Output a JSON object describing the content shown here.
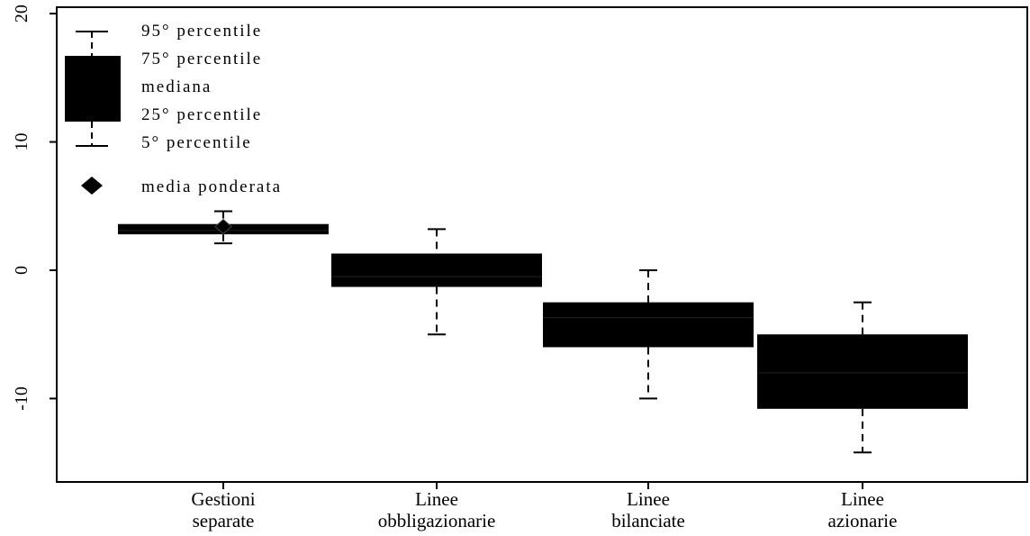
{
  "chart_data": {
    "type": "boxplot",
    "title": "",
    "xlabel": "",
    "ylabel": "",
    "ylim": [
      -16.5,
      20.5
    ],
    "yticks": [
      -10,
      0,
      10,
      20
    ],
    "yticks_labels": [
      "-10",
      "0",
      "10",
      "20"
    ],
    "grid": false,
    "legend_position": "top-left",
    "categories": [
      {
        "line1": "Gestioni",
        "line2": "separate"
      },
      {
        "line1": "Linee",
        "line2": "obbligazionarie"
      },
      {
        "line1": "Linee",
        "line2": "bilanciate"
      },
      {
        "line1": "Linee",
        "line2": "azionarie"
      }
    ],
    "boxes": [
      {
        "p5": 2.1,
        "p25": 2.8,
        "median": 3.1,
        "p75": 3.6,
        "p95": 4.6,
        "weighted_mean": 3.4
      },
      {
        "p5": -5.0,
        "p25": -1.3,
        "median": -0.5,
        "p75": 1.3,
        "p95": 3.2,
        "weighted_mean": null
      },
      {
        "p5": -10.0,
        "p25": -6.0,
        "median": -3.7,
        "p75": -2.5,
        "p95": 0.0,
        "weighted_mean": null
      },
      {
        "p5": -14.2,
        "p25": -10.8,
        "median": -8.0,
        "p75": -5.0,
        "p95": -2.5,
        "weighted_mean": null
      }
    ],
    "legend": {
      "p95": "95° percentile",
      "p75": "75° percentile",
      "median": "mediana",
      "p25": "25° percentile",
      "p5": "5°  percentile",
      "weighted_mean": "media ponderata"
    },
    "colors": {
      "box": "#000000",
      "whisker": "#000000",
      "median": "#222222"
    }
  }
}
